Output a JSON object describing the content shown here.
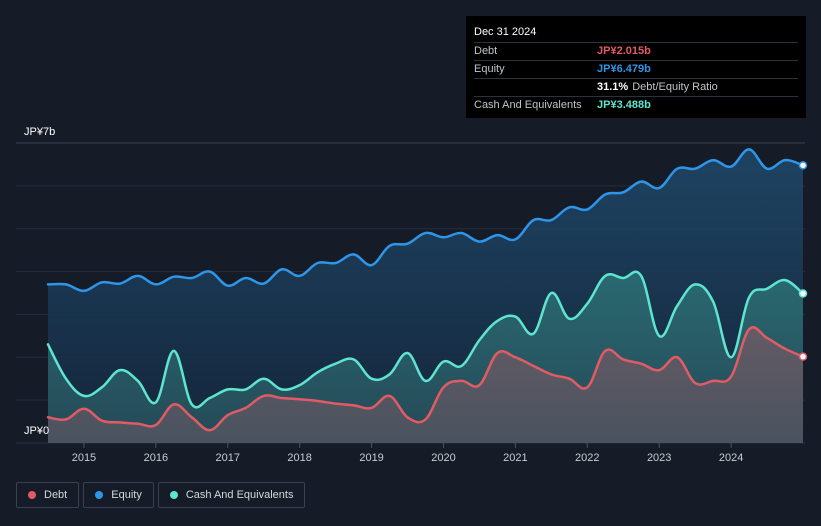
{
  "tooltip": {
    "date": "Dec 31 2024",
    "rows": [
      {
        "label": "Debt",
        "value": "JP¥2.015b",
        "color": "#e25b64"
      },
      {
        "label": "Equity",
        "value": "JP¥6.479b",
        "color": "#2f95e8"
      },
      {
        "ratio_value": "31.1%",
        "ratio_label": "Debt/Equity Ratio"
      },
      {
        "label": "Cash And Equivalents",
        "value": "JP¥3.488b",
        "color": "#5ee5cf"
      }
    ]
  },
  "legend": [
    {
      "label": "Debt",
      "color": "#e25b64"
    },
    {
      "label": "Equity",
      "color": "#2f95e8"
    },
    {
      "label": "Cash And Equivalents",
      "color": "#5ee5cf"
    }
  ],
  "chart_data": {
    "type": "area",
    "ylim": [
      0,
      7
    ],
    "y_unit": "JP¥ billions",
    "y_tick_labels": [
      {
        "value": 7,
        "label": "JP¥7b"
      },
      {
        "value": 0,
        "label": "JP¥0"
      }
    ],
    "x_tick_labels": [
      "2015",
      "2016",
      "2017",
      "2018",
      "2019",
      "2020",
      "2021",
      "2022",
      "2023",
      "2024"
    ],
    "xlim": [
      2014.5,
      2025.0
    ],
    "series": [
      {
        "name": "Equity",
        "color": "#2f95e8",
        "points": [
          [
            2014.5,
            3.7
          ],
          [
            2014.75,
            3.7
          ],
          [
            2015.0,
            3.55
          ],
          [
            2015.25,
            3.75
          ],
          [
            2015.5,
            3.72
          ],
          [
            2015.75,
            3.9
          ],
          [
            2016.0,
            3.7
          ],
          [
            2016.25,
            3.88
          ],
          [
            2016.5,
            3.85
          ],
          [
            2016.75,
            4.0
          ],
          [
            2017.0,
            3.67
          ],
          [
            2017.25,
            3.85
          ],
          [
            2017.5,
            3.72
          ],
          [
            2017.75,
            4.05
          ],
          [
            2018.0,
            3.9
          ],
          [
            2018.25,
            4.2
          ],
          [
            2018.5,
            4.2
          ],
          [
            2018.75,
            4.4
          ],
          [
            2019.0,
            4.15
          ],
          [
            2019.25,
            4.6
          ],
          [
            2019.5,
            4.65
          ],
          [
            2019.75,
            4.9
          ],
          [
            2020.0,
            4.8
          ],
          [
            2020.25,
            4.9
          ],
          [
            2020.5,
            4.7
          ],
          [
            2020.75,
            4.85
          ],
          [
            2021.0,
            4.75
          ],
          [
            2021.25,
            5.2
          ],
          [
            2021.5,
            5.2
          ],
          [
            2021.75,
            5.5
          ],
          [
            2022.0,
            5.45
          ],
          [
            2022.25,
            5.8
          ],
          [
            2022.5,
            5.85
          ],
          [
            2022.75,
            6.1
          ],
          [
            2023.0,
            5.95
          ],
          [
            2023.25,
            6.4
          ],
          [
            2023.5,
            6.4
          ],
          [
            2023.75,
            6.6
          ],
          [
            2024.0,
            6.45
          ],
          [
            2024.25,
            6.85
          ],
          [
            2024.5,
            6.4
          ],
          [
            2024.75,
            6.6
          ],
          [
            2025.0,
            6.479
          ]
        ]
      },
      {
        "name": "Cash And Equivalents",
        "color": "#5ee5cf",
        "points": [
          [
            2014.5,
            2.3
          ],
          [
            2014.75,
            1.5
          ],
          [
            2015.0,
            1.1
          ],
          [
            2015.25,
            1.3
          ],
          [
            2015.5,
            1.7
          ],
          [
            2015.75,
            1.45
          ],
          [
            2016.0,
            0.95
          ],
          [
            2016.25,
            2.15
          ],
          [
            2016.5,
            0.9
          ],
          [
            2016.75,
            1.05
          ],
          [
            2017.0,
            1.25
          ],
          [
            2017.25,
            1.25
          ],
          [
            2017.5,
            1.5
          ],
          [
            2017.75,
            1.25
          ],
          [
            2018.0,
            1.35
          ],
          [
            2018.25,
            1.65
          ],
          [
            2018.5,
            1.85
          ],
          [
            2018.75,
            1.95
          ],
          [
            2019.0,
            1.5
          ],
          [
            2019.25,
            1.6
          ],
          [
            2019.5,
            2.1
          ],
          [
            2019.75,
            1.45
          ],
          [
            2020.0,
            1.9
          ],
          [
            2020.25,
            1.8
          ],
          [
            2020.5,
            2.4
          ],
          [
            2020.75,
            2.85
          ],
          [
            2021.0,
            2.95
          ],
          [
            2021.25,
            2.55
          ],
          [
            2021.5,
            3.5
          ],
          [
            2021.75,
            2.9
          ],
          [
            2022.0,
            3.25
          ],
          [
            2022.25,
            3.9
          ],
          [
            2022.5,
            3.85
          ],
          [
            2022.75,
            3.9
          ],
          [
            2023.0,
            2.5
          ],
          [
            2023.25,
            3.2
          ],
          [
            2023.5,
            3.7
          ],
          [
            2023.75,
            3.3
          ],
          [
            2024.0,
            2.0
          ],
          [
            2024.25,
            3.4
          ],
          [
            2024.5,
            3.6
          ],
          [
            2024.75,
            3.8
          ],
          [
            2025.0,
            3.488
          ]
        ]
      },
      {
        "name": "Debt",
        "color": "#e25b64",
        "points": [
          [
            2014.5,
            0.6
          ],
          [
            2014.75,
            0.55
          ],
          [
            2015.0,
            0.8
          ],
          [
            2015.25,
            0.52
          ],
          [
            2015.5,
            0.48
          ],
          [
            2015.75,
            0.45
          ],
          [
            2016.0,
            0.42
          ],
          [
            2016.25,
            0.9
          ],
          [
            2016.5,
            0.6
          ],
          [
            2016.75,
            0.3
          ],
          [
            2017.0,
            0.65
          ],
          [
            2017.25,
            0.82
          ],
          [
            2017.5,
            1.1
          ],
          [
            2017.75,
            1.05
          ],
          [
            2018.0,
            1.02
          ],
          [
            2018.25,
            0.98
          ],
          [
            2018.5,
            0.92
          ],
          [
            2018.75,
            0.88
          ],
          [
            2019.0,
            0.82
          ],
          [
            2019.25,
            1.1
          ],
          [
            2019.5,
            0.6
          ],
          [
            2019.75,
            0.55
          ],
          [
            2020.0,
            1.3
          ],
          [
            2020.25,
            1.45
          ],
          [
            2020.5,
            1.35
          ],
          [
            2020.75,
            2.1
          ],
          [
            2021.0,
            2.0
          ],
          [
            2021.25,
            1.8
          ],
          [
            2021.5,
            1.6
          ],
          [
            2021.75,
            1.5
          ],
          [
            2022.0,
            1.3
          ],
          [
            2022.25,
            2.15
          ],
          [
            2022.5,
            1.95
          ],
          [
            2022.75,
            1.85
          ],
          [
            2023.0,
            1.7
          ],
          [
            2023.25,
            2.0
          ],
          [
            2023.5,
            1.4
          ],
          [
            2023.75,
            1.45
          ],
          [
            2024.0,
            1.55
          ],
          [
            2024.25,
            2.65
          ],
          [
            2024.5,
            2.45
          ],
          [
            2024.75,
            2.2
          ],
          [
            2025.0,
            2.015
          ]
        ]
      }
    ]
  }
}
